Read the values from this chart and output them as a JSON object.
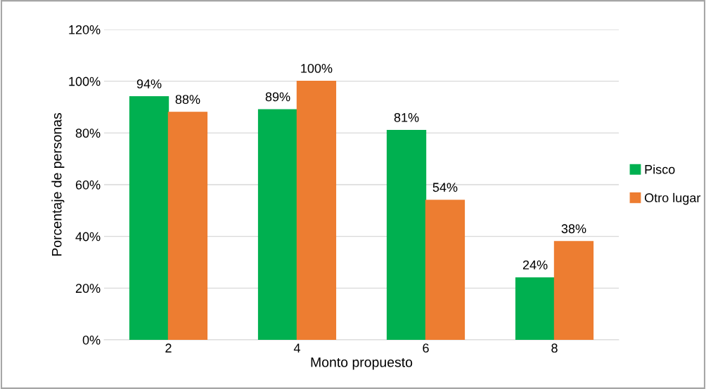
{
  "chart_data": {
    "type": "bar",
    "xlabel": "Monto propuesto",
    "ylabel": "Porcentaje de personas",
    "categories": [
      "2",
      "4",
      "6",
      "8"
    ],
    "series": [
      {
        "name": "Pisco",
        "color": "#00b050",
        "values": [
          94,
          89,
          81,
          24
        ],
        "value_labels": [
          "94%",
          "89%",
          "81%",
          "24%"
        ]
      },
      {
        "name": "Otro lugar",
        "color": "#ed7d31",
        "values": [
          88,
          100,
          54,
          38
        ],
        "value_labels": [
          "88%",
          "100%",
          "54%",
          "38%"
        ]
      }
    ],
    "ylim": [
      0,
      120
    ],
    "yticks": [
      {
        "value": 0,
        "label": "0%"
      },
      {
        "value": 20,
        "label": "20%"
      },
      {
        "value": 40,
        "label": "40%"
      },
      {
        "value": 60,
        "label": "60%"
      },
      {
        "value": 80,
        "label": "80%"
      },
      {
        "value": 100,
        "label": "100%"
      },
      {
        "value": 120,
        "label": "120%"
      }
    ],
    "grid": "y",
    "legend": "right"
  }
}
